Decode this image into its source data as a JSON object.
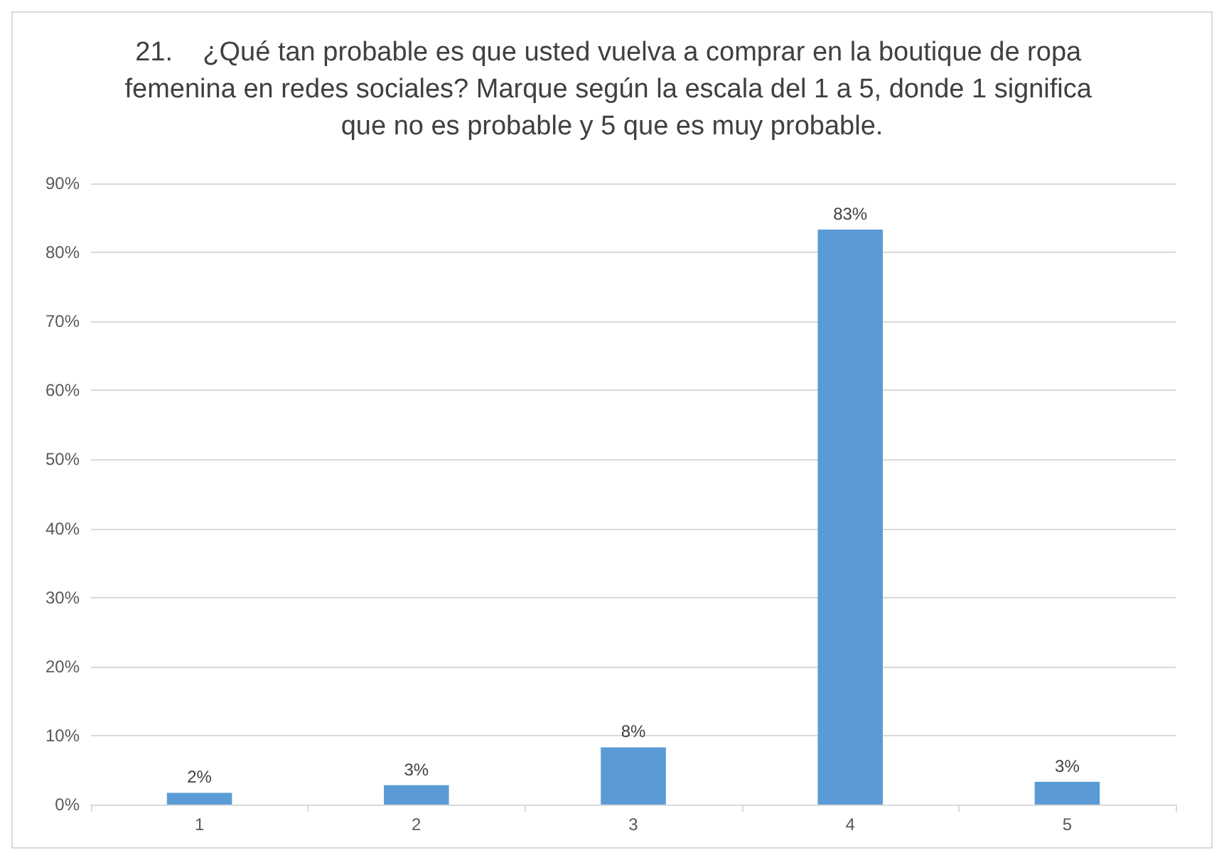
{
  "chart_data": {
    "type": "bar",
    "title": "21.    ¿Qué tan probable es que usted vuelva a comprar en la boutique de ropa femenina en redes sociales? Marque según la escala del 1 a 5, donde 1 significa que no es probable y 5 que es muy probable.",
    "categories": [
      "1",
      "2",
      "3",
      "4",
      "5"
    ],
    "values": [
      1.7,
      2.8,
      8.3,
      83.3,
      3.3
    ],
    "value_labels": [
      "2%",
      "3%",
      "8%",
      "83%",
      "3%"
    ],
    "color": "#5b9bd5",
    "ylim": [
      0,
      90
    ],
    "yticks": [
      {
        "value": 0,
        "label": "0%"
      },
      {
        "value": 10,
        "label": "10%"
      },
      {
        "value": 20,
        "label": "20%"
      },
      {
        "value": 30,
        "label": "30%"
      },
      {
        "value": 40,
        "label": "40%"
      },
      {
        "value": 50,
        "label": "50%"
      },
      {
        "value": 60,
        "label": "60%"
      },
      {
        "value": 70,
        "label": "70%"
      },
      {
        "value": 80,
        "label": "80%"
      },
      {
        "value": 90,
        "label": "90%"
      }
    ],
    "grid": "y"
  }
}
